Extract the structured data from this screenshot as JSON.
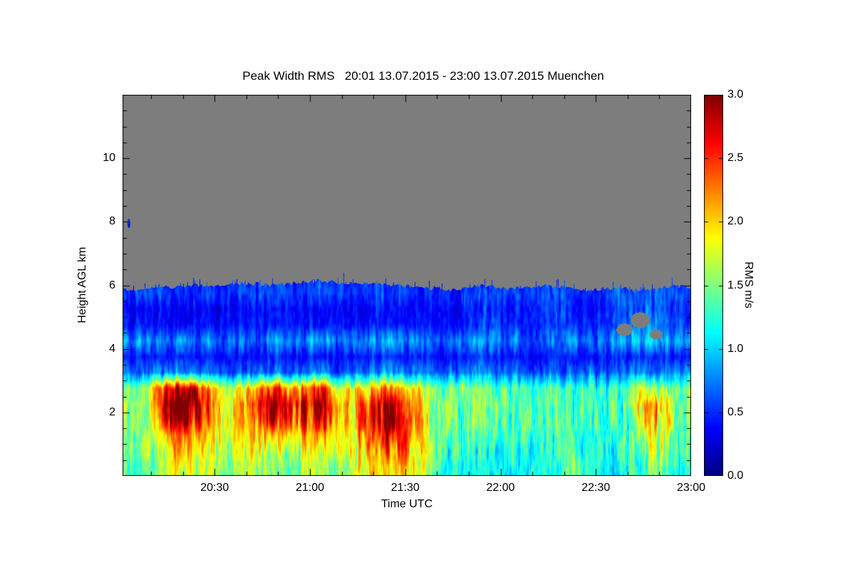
{
  "colors": {
    "background": "#ffffff",
    "frame": "#000000",
    "no_data_gray": "#7d7d7d",
    "colormap_low": "#000080",
    "colormap_high": "#800000"
  },
  "chart_data": {
    "type": "heatmap",
    "title": "Peak Width RMS   20:01 13.07.2015 - 23:00 13.07.2015 Muenchen",
    "xlabel": "Time UTC",
    "ylabel": "Height AGL km",
    "colorbar_label": "RMS m/s",
    "time_start": "20:01 13.07.2015",
    "time_end": "23:00 13.07.2015",
    "station": "Muenchen",
    "x_range_minutes": [
      0,
      179
    ],
    "y_range_km": [
      0,
      12
    ],
    "value_range": [
      0,
      3
    ],
    "colormap": "jet",
    "x_ticks": [
      {
        "m": 29,
        "label": "20:30"
      },
      {
        "m": 59,
        "label": "21:00"
      },
      {
        "m": 89,
        "label": "21:30"
      },
      {
        "m": 119,
        "label": "22:00"
      },
      {
        "m": 149,
        "label": "22:30"
      },
      {
        "m": 179,
        "label": "23:00"
      }
    ],
    "x_minor_step_min": 10,
    "y_ticks": [
      {
        "v": 2,
        "label": "2"
      },
      {
        "v": 4,
        "label": "4"
      },
      {
        "v": 6,
        "label": "6"
      },
      {
        "v": 8,
        "label": "8"
      },
      {
        "v": 10,
        "label": "10"
      }
    ],
    "y_minor_step_km": 0.5,
    "colorbar_ticks": [
      {
        "v": 0.0,
        "label": "0.0"
      },
      {
        "v": 0.5,
        "label": "0.5"
      },
      {
        "v": 1.0,
        "label": "1.0"
      },
      {
        "v": 1.5,
        "label": "1.5"
      },
      {
        "v": 2.0,
        "label": "2.0"
      },
      {
        "v": 2.5,
        "label": "2.5"
      },
      {
        "v": 3.0,
        "label": "3.0"
      }
    ],
    "grid": {
      "time_start_min": 2.5,
      "time_step_min": 5,
      "height_start_km": 0.25,
      "height_step_km": 0.5,
      "values_rows_bottom_up": [
        [
          1.3,
          1.4,
          1.6,
          1.8,
          1.7,
          1.6,
          1.5,
          1.7,
          1.5,
          1.6,
          1.4,
          1.5,
          1.6,
          1.4,
          1.7,
          1.9,
          2.0,
          1.9,
          1.8,
          1.4,
          1.2,
          1.1,
          1.2,
          1.1,
          1.0,
          1.1,
          1.2,
          1.1,
          1.6,
          1.2,
          1.1,
          1.2,
          1.3,
          1.5,
          1.3,
          1.2
        ],
        [
          1.4,
          1.5,
          1.8,
          2.0,
          1.9,
          1.7,
          1.6,
          1.8,
          1.7,
          1.8,
          1.6,
          1.7,
          1.8,
          1.6,
          1.8,
          2.1,
          2.2,
          2.1,
          1.9,
          1.5,
          1.3,
          1.2,
          1.2,
          1.2,
          1.1,
          1.1,
          1.2,
          1.2,
          1.3,
          1.2,
          1.2,
          1.3,
          1.5,
          1.7,
          1.4,
          1.3
        ],
        [
          1.5,
          1.6,
          2.0,
          2.2,
          2.1,
          1.9,
          1.7,
          1.9,
          2.0,
          2.2,
          1.9,
          2.0,
          2.1,
          1.8,
          1.9,
          2.3,
          2.5,
          2.4,
          2.0,
          1.5,
          1.4,
          1.3,
          1.3,
          1.3,
          1.2,
          1.2,
          1.3,
          1.3,
          1.3,
          1.2,
          1.2,
          1.3,
          1.6,
          1.9,
          1.5,
          1.3
        ],
        [
          1.5,
          1.7,
          2.4,
          2.8,
          2.6,
          2.2,
          1.8,
          2.0,
          2.3,
          2.7,
          2.4,
          2.5,
          2.6,
          2.0,
          2.0,
          2.5,
          2.8,
          2.6,
          2.1,
          1.6,
          1.4,
          1.4,
          1.4,
          1.3,
          1.3,
          1.3,
          1.3,
          1.3,
          1.3,
          1.3,
          1.2,
          1.3,
          1.8,
          2.2,
          1.6,
          1.3
        ],
        [
          1.5,
          1.7,
          2.6,
          3.0,
          2.8,
          2.3,
          1.8,
          2.1,
          2.5,
          2.9,
          2.6,
          2.7,
          2.8,
          2.1,
          2.0,
          2.4,
          2.7,
          2.5,
          2.0,
          1.6,
          1.5,
          1.4,
          1.4,
          1.4,
          1.3,
          1.3,
          1.4,
          1.3,
          1.3,
          1.3,
          1.3,
          1.3,
          1.9,
          2.3,
          1.6,
          1.3
        ],
        [
          1.4,
          1.6,
          2.3,
          2.7,
          2.5,
          2.0,
          1.7,
          1.9,
          2.2,
          2.5,
          2.2,
          2.3,
          2.4,
          1.9,
          1.8,
          2.0,
          2.2,
          2.0,
          1.8,
          1.5,
          1.4,
          1.4,
          1.4,
          1.3,
          1.3,
          1.3,
          1.3,
          1.3,
          1.3,
          1.2,
          1.2,
          1.3,
          1.6,
          1.9,
          1.4,
          1.3
        ],
        [
          0.6,
          0.6,
          0.7,
          0.7,
          0.7,
          0.6,
          0.6,
          0.6,
          0.7,
          0.7,
          0.6,
          0.7,
          0.7,
          0.6,
          0.6,
          0.7,
          0.8,
          0.7,
          0.7,
          0.6,
          0.6,
          0.6,
          0.7,
          0.6,
          0.6,
          0.6,
          0.6,
          0.6,
          0.6,
          0.6,
          0.6,
          0.6,
          0.7,
          0.7,
          0.7,
          0.7
        ],
        [
          0.4,
          0.4,
          0.4,
          0.45,
          0.4,
          0.4,
          0.35,
          0.4,
          0.4,
          0.45,
          0.4,
          0.4,
          0.4,
          0.4,
          0.35,
          0.4,
          0.45,
          0.4,
          0.4,
          0.4,
          0.35,
          0.4,
          0.45,
          0.4,
          0.4,
          0.4,
          0.4,
          0.4,
          0.4,
          0.35,
          0.4,
          0.4,
          0.45,
          0.45,
          0.4,
          0.4
        ],
        [
          0.8,
          0.7,
          0.7,
          0.8,
          0.7,
          0.7,
          0.6,
          0.7,
          0.7,
          0.8,
          0.7,
          0.7,
          0.8,
          0.7,
          0.6,
          0.7,
          0.8,
          0.7,
          0.7,
          0.6,
          0.6,
          0.7,
          0.8,
          0.7,
          0.7,
          0.6,
          0.7,
          0.7,
          0.7,
          0.6,
          0.7,
          0.8,
          0.9,
          0.9,
          0.8,
          0.8
        ],
        [
          0.4,
          0.35,
          0.4,
          0.4,
          0.4,
          0.35,
          0.35,
          0.4,
          0.4,
          0.4,
          0.4,
          0.4,
          0.4,
          0.35,
          0.35,
          0.4,
          0.4,
          0.4,
          0.4,
          0.35,
          0.35,
          0.4,
          0.5,
          0.5,
          0.45,
          0.4,
          0.5,
          0.5,
          0.45,
          0.4,
          0.5,
          0.6,
          0.7,
          0.7,
          0.6,
          0.5
        ],
        [
          0.35,
          0.3,
          0.35,
          0.4,
          0.35,
          0.3,
          0.3,
          0.35,
          0.35,
          0.4,
          0.35,
          0.35,
          0.35,
          0.3,
          0.3,
          0.35,
          0.4,
          0.35,
          0.35,
          0.3,
          0.3,
          0.4,
          0.5,
          0.45,
          0.4,
          0.35,
          0.45,
          0.5,
          0.4,
          0.35,
          0.45,
          0.55,
          0.6,
          0.6,
          0.5,
          0.45
        ],
        [
          0.5,
          0.55,
          0.5,
          0.55,
          0.5,
          0.5,
          0.45,
          0.5,
          0.55,
          0.6,
          0.5,
          0.5,
          0.55,
          0.5,
          0.45,
          0.5,
          0.55,
          0.5,
          0.5,
          0.45,
          0.45,
          0.5,
          0.6,
          0.55,
          0.5,
          0.45,
          0.55,
          0.6,
          0.5,
          0.45,
          0.5,
          0.6,
          0.6,
          0.6,
          0.55,
          0.5
        ],
        [
          0.45,
          0.5,
          0.45,
          0.5,
          0.45,
          0.45,
          0.4,
          0.45,
          0.5,
          0.55,
          0.45,
          0.45,
          0.5,
          0.45,
          0.4,
          0.45,
          0.5,
          0.45,
          0.45,
          0.4,
          0.4,
          0.45,
          0.5,
          0.5,
          0.45,
          0.4,
          0.5,
          0.5,
          0.45,
          0.4,
          0.45,
          0.5,
          0.5,
          0.5,
          0.5,
          0.45
        ]
      ]
    },
    "cloud_top_km": [
      5.85,
      5.9,
      5.95,
      5.95,
      6.0,
      6.0,
      6.0,
      6.05,
      6.05,
      6.0,
      6.05,
      6.1,
      6.15,
      6.1,
      6.05,
      6.05,
      6.05,
      6.0,
      5.95,
      5.9,
      5.85,
      5.9,
      6.0,
      5.95,
      5.9,
      5.95,
      6.0,
      5.95,
      5.9,
      5.85,
      5.9,
      5.9,
      5.85,
      5.9,
      5.95,
      5.95
    ],
    "no_data_above_cloud_top": true,
    "speck": {
      "t": 2,
      "h": 7.95,
      "v": 0.4
    },
    "no_data_holes": [
      {
        "t": 158,
        "h": 4.6,
        "rt": 2.5,
        "rh": 0.2
      },
      {
        "t": 163,
        "h": 4.9,
        "rt": 3,
        "rh": 0.25
      },
      {
        "t": 168,
        "h": 4.45,
        "rt": 2,
        "rh": 0.15
      }
    ]
  }
}
